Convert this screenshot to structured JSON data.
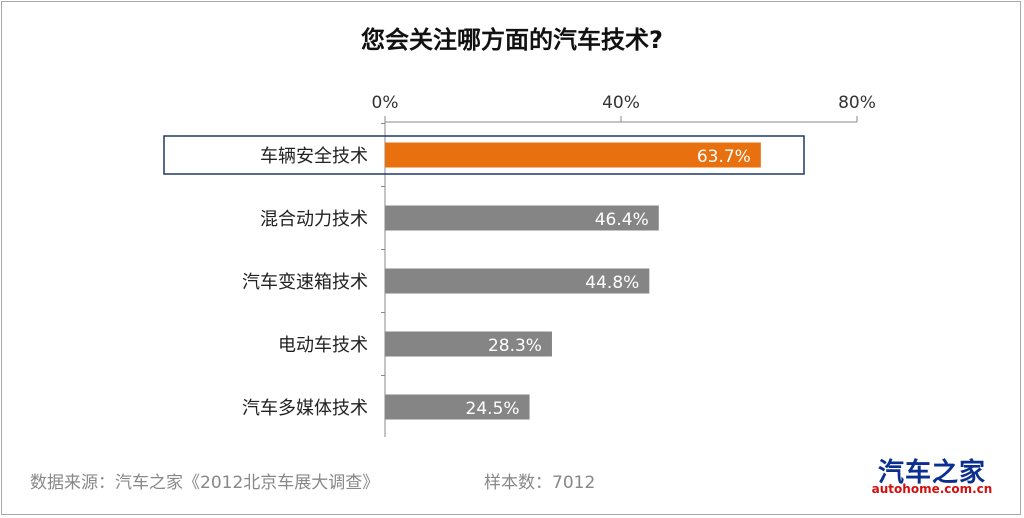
{
  "chart_data": {
    "type": "bar",
    "orientation": "horizontal",
    "title": "您会关注哪方面的汽车技术?",
    "categories": [
      "车辆安全技术",
      "混合动力技术",
      "汽车变速箱技术",
      "电动车技术",
      "汽车多媒体技术"
    ],
    "values": [
      63.7,
      46.4,
      44.8,
      28.3,
      24.5
    ],
    "value_labels": [
      "63.7%",
      "46.4%",
      "44.8%",
      "28.3%",
      "24.5%"
    ],
    "xlim": [
      0,
      80
    ],
    "x_ticks": [
      0,
      40,
      80
    ],
    "x_tick_labels": [
      "0%",
      "40%",
      "80%"
    ],
    "x_axis_position": "top",
    "grid": false,
    "legend": "none",
    "highlighted_category": "车辆安全技术"
  },
  "colors": {
    "highlight_bar": "#e8700e",
    "bar": "#858585",
    "highlight_box": "#1f3864",
    "axis": "#888888",
    "value_label": "#ffffff"
  },
  "footer": {
    "source": "数据来源：汽车之家《2012北京车展大调查》",
    "sample": "样本数：7012"
  },
  "logo": {
    "main": "汽车之家",
    "sub": "autohome.com.cn"
  }
}
